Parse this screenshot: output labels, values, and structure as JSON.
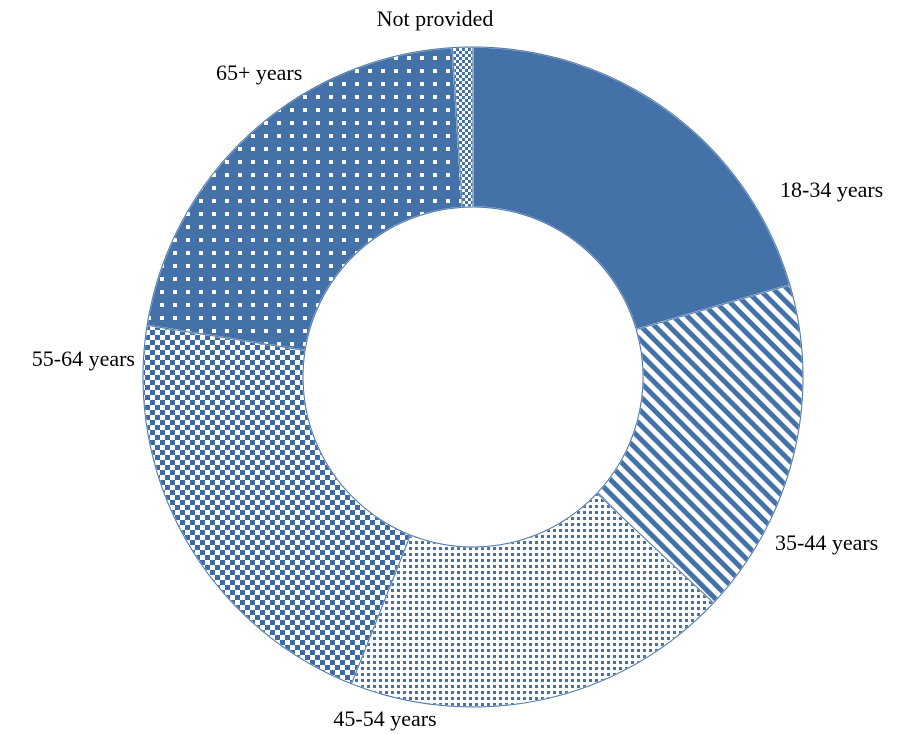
{
  "chart_data": {
    "type": "pie",
    "variant": "donut",
    "categories": [
      "18-34 years",
      "35-44 years",
      "45-54 years",
      "55-64 years",
      "65+ years",
      "Not provided"
    ],
    "values": [
      20.5,
      16.5,
      19.0,
      21.5,
      21.5,
      1.0
    ],
    "unit": "percent",
    "start_angle_deg": 0,
    "direction": "clockwise",
    "legend": "none",
    "colors": {
      "base": "#4472a8",
      "dark": "#3b6aa4",
      "light": "#ffffff"
    },
    "patterns": [
      "solid",
      "diagonal-stripes",
      "small-dots",
      "checkerboard",
      "spaced-squares",
      "dots"
    ]
  }
}
